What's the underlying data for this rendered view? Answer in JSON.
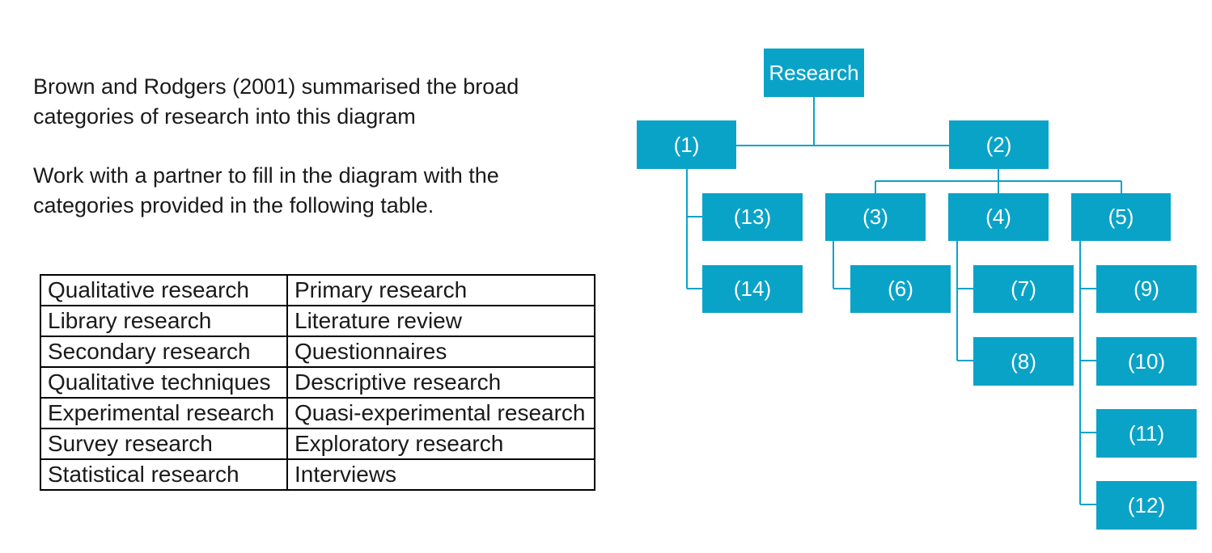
{
  "intro": {
    "line1": "Brown and Rodgers (2001) summarised the broad categories of research into this diagram",
    "line2": "Work with a partner to fill in the diagram with the categories provided in the following table."
  },
  "table": {
    "rows": [
      [
        "Qualitative research",
        "Primary research"
      ],
      [
        "Library research",
        "Literature review"
      ],
      [
        "Secondary research",
        "Questionnaires"
      ],
      [
        "Qualitative techniques",
        "Descriptive research"
      ],
      [
        "Experimental research",
        "Quasi-experimental research"
      ],
      [
        "Survey research",
        "Exploratory research"
      ],
      [
        "Statistical research",
        "Interviews"
      ]
    ]
  },
  "diagram": {
    "root": "Research",
    "nodes": {
      "n1": "(1)",
      "n2": "(2)",
      "n3": "(3)",
      "n4": "(4)",
      "n5": "(5)",
      "n6": "(6)",
      "n7": "(7)",
      "n8": "(8)",
      "n9": "(9)",
      "n10": "(10)",
      "n11": "(11)",
      "n12": "(12)",
      "n13": "(13)",
      "n14": "(14)"
    },
    "accent_color": "#0aa3c8"
  }
}
